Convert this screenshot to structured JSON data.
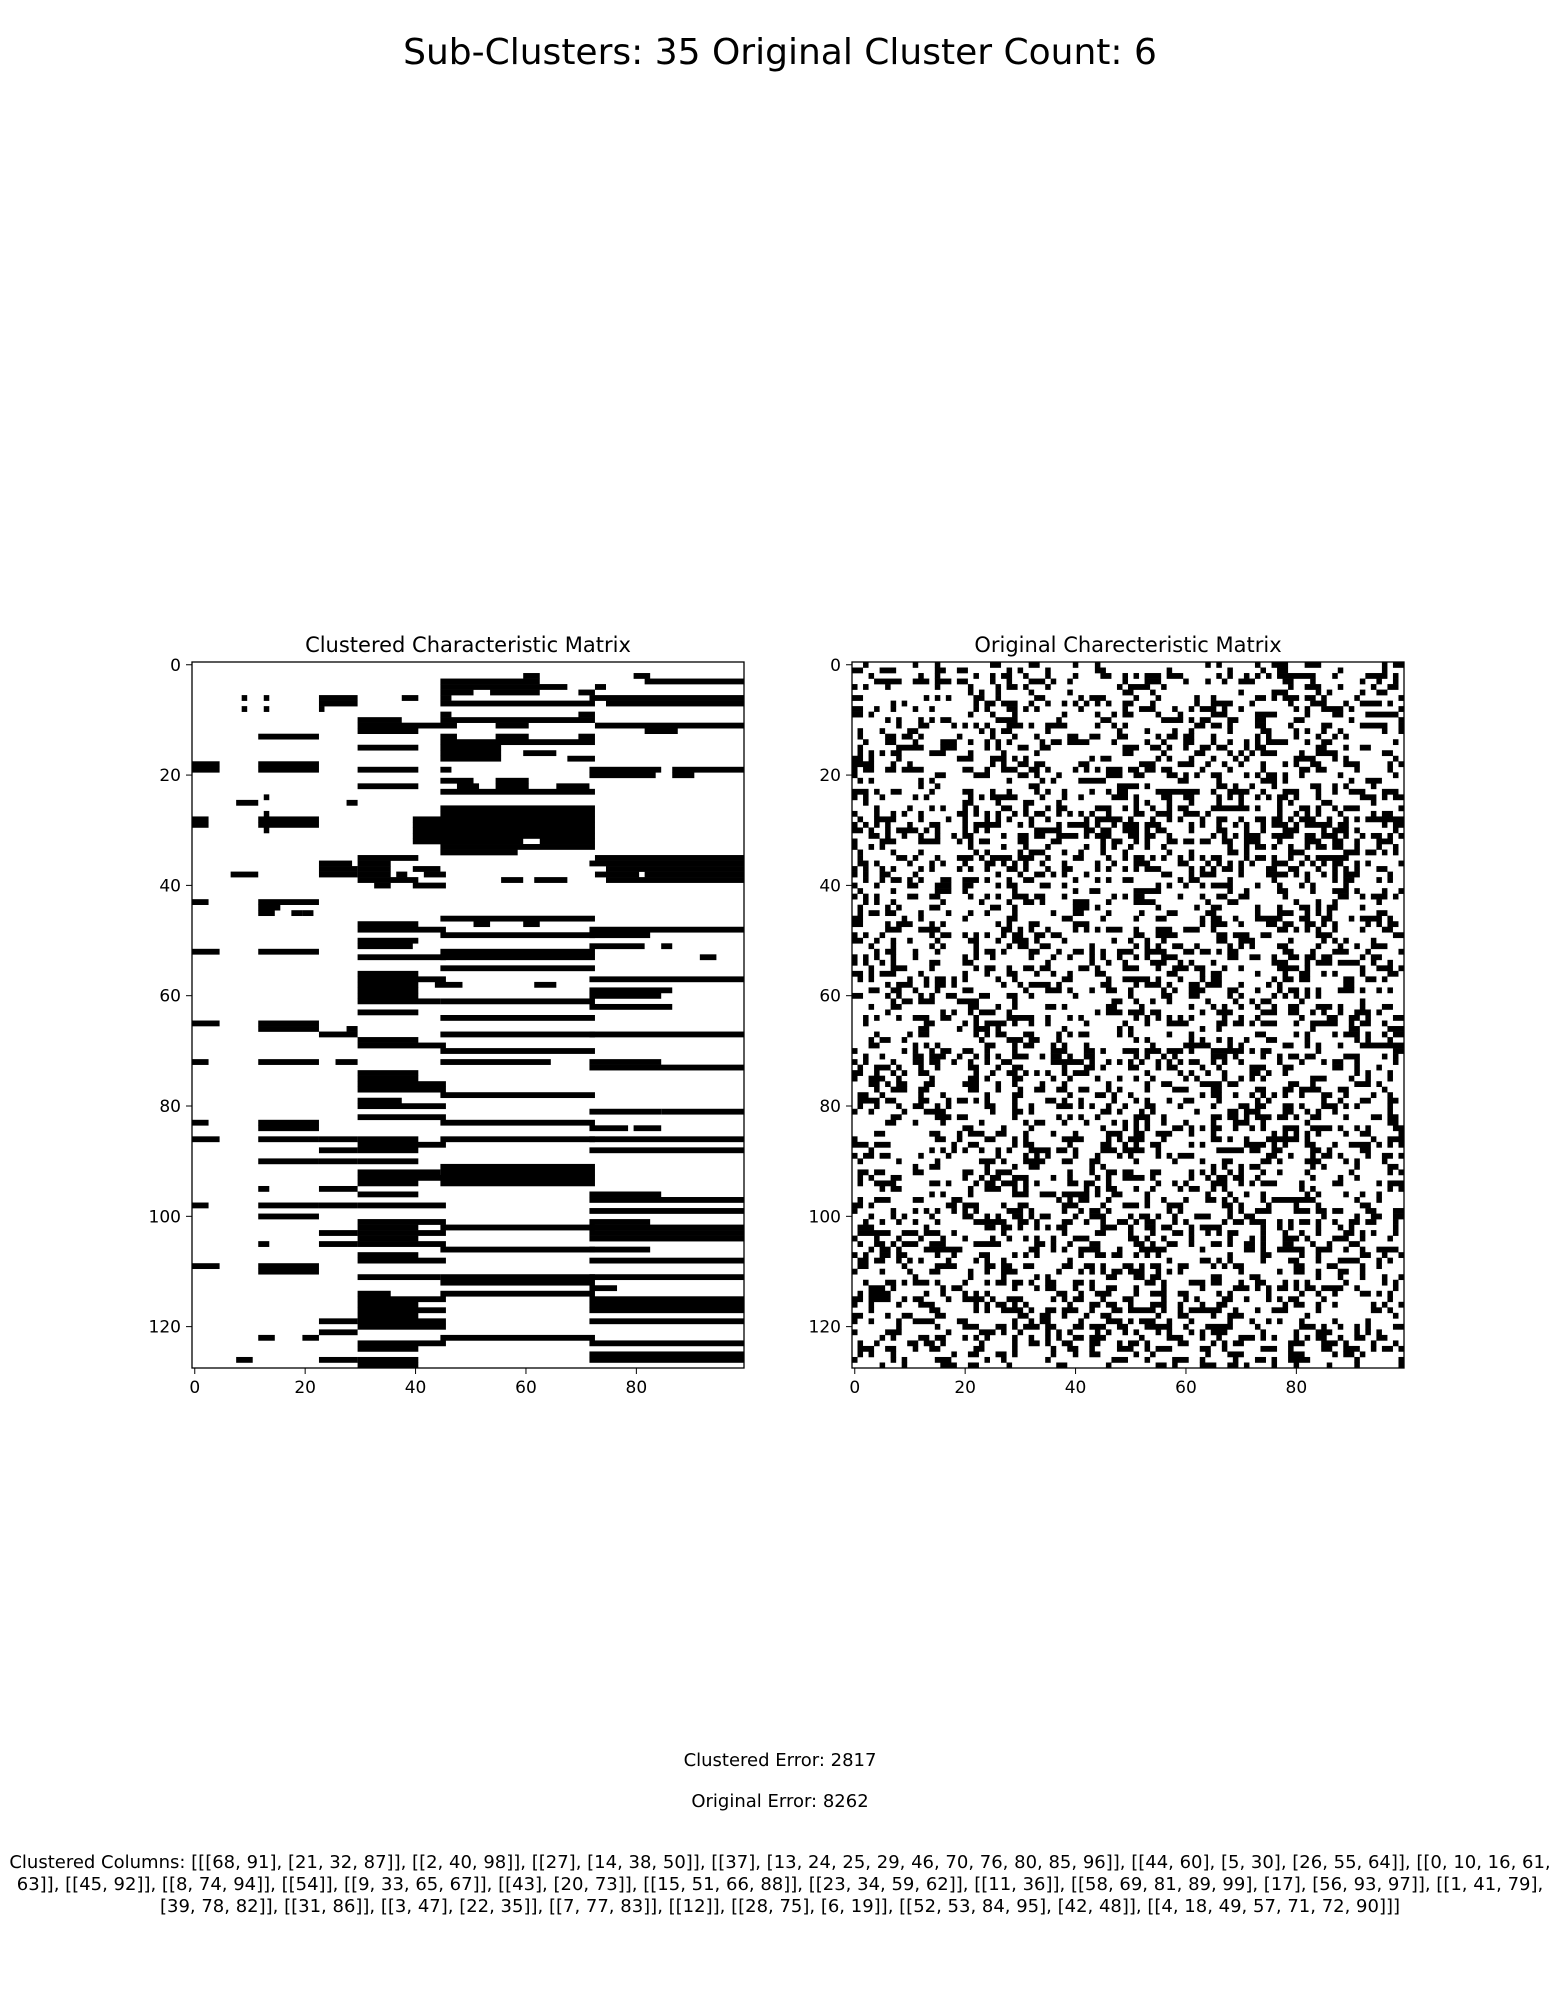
{
  "figure": {
    "suptitle": "Sub-Clusters: 35  Original Cluster Count: 6",
    "clustered_error": "Clustered Error: 2817",
    "original_error": "Original Error: 8262",
    "clustered_columns": "Clustered Columns: [[[68, 91], [21, 32, 87]], [[2, 40, 98]], [[27], [14, 38, 50]], [[37], [13, 24, 25, 29, 46, 70, 76, 80, 85, 96]], [[44, 60], [5, 30], [26, 55, 64]], [[0, 10, 16, 61, 63]], [[45, 92]], [[8, 74, 94]], [[54]], [[9, 33, 65, 67]], [[43], [20, 73]], [[15, 51, 66, 88]], [[23, 34, 59, 62]], [[11, 36]], [[58, 69, 81, 89, 99], [17], [56, 93, 97]], [[1, 41, 79], [39, 78, 82]], [[31, 86]], [[3, 47], [22, 35]], [[7, 77, 83]], [[12]], [[28, 75], [6, 19]], [[52, 53, 84, 95], [42, 48]], [[4, 18, 49, 57, 71, 72, 90]]]"
  },
  "chart_data": [
    {
      "type": "heatmap",
      "title": "Clustered Characteristic Matrix",
      "rows": 128,
      "cols": 100,
      "colormap": {
        "0": "#ffffff",
        "1": "#000000"
      },
      "xticks": [
        0,
        20,
        40,
        60,
        80
      ],
      "yticks": [
        0,
        20,
        40,
        60,
        80,
        100,
        120
      ],
      "xlim": [
        -0.5,
        99.5
      ],
      "ylim": [
        127.5,
        -0.5
      ],
      "filled_runs": [
        [
          2,
          60,
          62
        ],
        [
          2,
          80,
          82
        ],
        [
          3,
          45,
          62
        ],
        [
          3,
          82,
          99
        ],
        [
          4,
          45,
          67
        ],
        [
          4,
          73,
          74
        ],
        [
          5,
          45,
          50
        ],
        [
          5,
          54,
          62
        ],
        [
          5,
          70,
          72
        ],
        [
          6,
          9,
          9
        ],
        [
          6,
          13,
          13
        ],
        [
          6,
          23,
          29
        ],
        [
          6,
          38,
          40
        ],
        [
          6,
          45,
          46
        ],
        [
          6,
          72,
          99
        ],
        [
          7,
          23,
          29
        ],
        [
          7,
          45,
          72
        ],
        [
          7,
          75,
          99
        ],
        [
          8,
          9,
          9
        ],
        [
          8,
          13,
          13
        ],
        [
          8,
          23,
          23
        ],
        [
          9,
          45,
          46
        ],
        [
          9,
          70,
          72
        ],
        [
          10,
          30,
          37
        ],
        [
          10,
          45,
          72
        ],
        [
          11,
          30,
          47
        ],
        [
          11,
          55,
          60
        ],
        [
          11,
          73,
          99
        ],
        [
          12,
          30,
          40
        ],
        [
          12,
          82,
          87
        ],
        [
          13,
          12,
          22
        ],
        [
          13,
          45,
          47
        ],
        [
          13,
          55,
          60
        ],
        [
          13,
          70,
          72
        ],
        [
          14,
          45,
          72
        ],
        [
          15,
          30,
          40
        ],
        [
          15,
          45,
          55
        ],
        [
          16,
          45,
          55
        ],
        [
          16,
          60,
          65
        ],
        [
          17,
          45,
          55
        ],
        [
          17,
          68,
          72
        ],
        [
          18,
          0,
          4
        ],
        [
          18,
          12,
          22
        ],
        [
          19,
          0,
          4
        ],
        [
          19,
          12,
          22
        ],
        [
          19,
          30,
          40
        ],
        [
          19,
          45,
          46
        ],
        [
          19,
          72,
          84
        ],
        [
          19,
          87,
          99
        ],
        [
          20,
          72,
          83
        ],
        [
          20,
          87,
          90
        ],
        [
          21,
          45,
          50
        ],
        [
          21,
          55,
          60
        ],
        [
          22,
          30,
          40
        ],
        [
          22,
          48,
          51
        ],
        [
          22,
          55,
          60
        ],
        [
          22,
          66,
          71
        ],
        [
          23,
          45,
          72
        ],
        [
          24,
          13,
          13
        ],
        [
          25,
          8,
          11
        ],
        [
          25,
          28,
          29
        ],
        [
          26,
          45,
          72
        ],
        [
          27,
          13,
          13
        ],
        [
          27,
          45,
          72
        ],
        [
          28,
          0,
          2
        ],
        [
          28,
          12,
          22
        ],
        [
          28,
          40,
          72
        ],
        [
          29,
          0,
          2
        ],
        [
          29,
          13,
          13
        ],
        [
          29,
          40,
          72
        ],
        [
          29,
          12,
          22
        ],
        [
          30,
          13,
          13
        ],
        [
          30,
          40,
          72
        ],
        [
          31,
          40,
          72
        ],
        [
          32,
          40,
          59
        ],
        [
          32,
          63,
          72
        ],
        [
          33,
          45,
          72
        ],
        [
          34,
          45,
          58
        ],
        [
          35,
          30,
          40
        ],
        [
          35,
          73,
          99
        ],
        [
          36,
          23,
          28
        ],
        [
          36,
          30,
          35
        ],
        [
          36,
          72,
          99
        ],
        [
          37,
          23,
          29
        ],
        [
          37,
          30,
          35
        ],
        [
          37,
          40,
          44
        ],
        [
          37,
          75,
          99
        ],
        [
          38,
          7,
          11
        ],
        [
          38,
          23,
          29
        ],
        [
          38,
          30,
          35
        ],
        [
          38,
          37,
          38
        ],
        [
          38,
          42,
          45
        ],
        [
          38,
          73,
          80
        ],
        [
          38,
          82,
          99
        ],
        [
          39,
          30,
          40
        ],
        [
          39,
          56,
          59
        ],
        [
          39,
          62,
          67
        ],
        [
          39,
          75,
          99
        ],
        [
          40,
          33,
          35
        ],
        [
          40,
          40,
          45
        ],
        [
          43,
          0,
          2
        ],
        [
          43,
          12,
          22
        ],
        [
          44,
          12,
          15
        ],
        [
          45,
          12,
          14
        ],
        [
          45,
          18,
          19
        ],
        [
          45,
          20,
          21
        ],
        [
          46,
          45,
          72
        ],
        [
          47,
          30,
          40
        ],
        [
          47,
          51,
          53
        ],
        [
          47,
          60,
          62
        ],
        [
          48,
          30,
          45
        ],
        [
          48,
          72,
          99
        ],
        [
          49,
          45,
          72
        ],
        [
          49,
          72,
          82
        ],
        [
          50,
          30,
          40
        ],
        [
          51,
          30,
          39
        ],
        [
          51,
          72,
          81
        ],
        [
          51,
          85,
          86
        ],
        [
          52,
          0,
          4
        ],
        [
          52,
          12,
          22
        ],
        [
          52,
          45,
          72
        ],
        [
          53,
          30,
          45
        ],
        [
          53,
          45,
          72
        ],
        [
          53,
          92,
          94
        ],
        [
          55,
          45,
          72
        ],
        [
          56,
          30,
          40
        ],
        [
          57,
          30,
          45
        ],
        [
          57,
          72,
          99
        ],
        [
          58,
          30,
          40
        ],
        [
          58,
          44,
          48
        ],
        [
          58,
          62,
          65
        ],
        [
          59,
          30,
          40
        ],
        [
          59,
          72,
          86
        ],
        [
          60,
          30,
          40
        ],
        [
          60,
          72,
          84
        ],
        [
          61,
          30,
          44
        ],
        [
          61,
          45,
          72
        ],
        [
          62,
          72,
          86
        ],
        [
          63,
          30,
          40
        ],
        [
          64,
          45,
          72
        ],
        [
          65,
          0,
          4
        ],
        [
          65,
          12,
          22
        ],
        [
          66,
          12,
          22
        ],
        [
          66,
          28,
          29
        ],
        [
          67,
          23,
          29
        ],
        [
          67,
          45,
          72
        ],
        [
          67,
          72,
          99
        ],
        [
          68,
          30,
          40
        ],
        [
          69,
          30,
          45
        ],
        [
          70,
          45,
          72
        ],
        [
          72,
          0,
          2
        ],
        [
          72,
          12,
          22
        ],
        [
          72,
          26,
          29
        ],
        [
          72,
          45,
          64
        ],
        [
          72,
          72,
          84
        ],
        [
          73,
          72,
          99
        ],
        [
          74,
          30,
          40
        ],
        [
          75,
          30,
          40
        ],
        [
          76,
          30,
          45
        ],
        [
          77,
          30,
          45
        ],
        [
          78,
          45,
          72
        ],
        [
          79,
          30,
          37
        ],
        [
          80,
          30,
          45
        ],
        [
          81,
          72,
          84
        ],
        [
          81,
          85,
          99
        ],
        [
          82,
          30,
          45
        ],
        [
          83,
          0,
          2
        ],
        [
          83,
          12,
          22
        ],
        [
          83,
          45,
          72
        ],
        [
          84,
          12,
          22
        ],
        [
          84,
          72,
          78
        ],
        [
          84,
          80,
          84
        ],
        [
          86,
          0,
          4
        ],
        [
          86,
          12,
          22
        ],
        [
          86,
          23,
          29
        ],
        [
          86,
          30,
          40
        ],
        [
          86,
          45,
          72
        ],
        [
          86,
          72,
          99
        ],
        [
          87,
          30,
          45
        ],
        [
          88,
          23,
          29
        ],
        [
          88,
          30,
          40
        ],
        [
          88,
          72,
          99
        ],
        [
          90,
          12,
          22
        ],
        [
          90,
          23,
          29
        ],
        [
          90,
          30,
          40
        ],
        [
          91,
          45,
          72
        ],
        [
          92,
          30,
          44
        ],
        [
          92,
          45,
          72
        ],
        [
          93,
          30,
          45
        ],
        [
          93,
          45,
          72
        ],
        [
          94,
          30,
          40
        ],
        [
          94,
          45,
          72
        ],
        [
          95,
          12,
          13
        ],
        [
          95,
          23,
          29
        ],
        [
          96,
          30,
          40
        ],
        [
          96,
          72,
          84
        ],
        [
          97,
          72,
          99
        ],
        [
          98,
          0,
          2
        ],
        [
          98,
          12,
          22
        ],
        [
          98,
          23,
          29
        ],
        [
          98,
          30,
          45
        ],
        [
          99,
          72,
          99
        ],
        [
          100,
          12,
          22
        ],
        [
          101,
          30,
          45
        ],
        [
          101,
          72,
          82
        ],
        [
          102,
          30,
          40
        ],
        [
          102,
          45,
          72
        ],
        [
          102,
          72,
          99
        ],
        [
          103,
          23,
          29
        ],
        [
          103,
          30,
          45
        ],
        [
          103,
          72,
          99
        ],
        [
          104,
          30,
          40
        ],
        [
          104,
          72,
          99
        ],
        [
          105,
          12,
          13
        ],
        [
          105,
          23,
          29
        ],
        [
          105,
          30,
          45
        ],
        [
          106,
          45,
          72
        ],
        [
          106,
          72,
          82
        ],
        [
          107,
          30,
          40
        ],
        [
          108,
          30,
          45
        ],
        [
          108,
          72,
          99
        ],
        [
          109,
          0,
          4
        ],
        [
          109,
          12,
          22
        ],
        [
          110,
          12,
          22
        ],
        [
          111,
          30,
          44
        ],
        [
          111,
          45,
          72
        ],
        [
          111,
          72,
          99
        ],
        [
          112,
          45,
          72
        ],
        [
          113,
          72,
          76
        ],
        [
          114,
          30,
          35
        ],
        [
          114,
          45,
          72
        ],
        [
          115,
          30,
          45
        ],
        [
          115,
          72,
          99
        ],
        [
          116,
          30,
          40
        ],
        [
          116,
          72,
          99
        ],
        [
          117,
          30,
          45
        ],
        [
          117,
          72,
          99
        ],
        [
          118,
          30,
          40
        ],
        [
          119,
          23,
          29
        ],
        [
          119,
          30,
          45
        ],
        [
          119,
          72,
          99
        ],
        [
          120,
          30,
          45
        ],
        [
          121,
          23,
          29
        ],
        [
          122,
          12,
          14
        ],
        [
          122,
          20,
          22
        ],
        [
          122,
          45,
          72
        ],
        [
          123,
          30,
          45
        ],
        [
          123,
          72,
          99
        ],
        [
          124,
          30,
          40
        ],
        [
          125,
          72,
          99
        ],
        [
          126,
          8,
          10
        ],
        [
          126,
          23,
          29
        ],
        [
          126,
          30,
          40
        ],
        [
          126,
          72,
          99
        ],
        [
          127,
          30,
          40
        ]
      ]
    },
    {
      "type": "heatmap",
      "title": "Original Charecteristic Matrix",
      "rows": 128,
      "cols": 100,
      "colormap": {
        "0": "#ffffff",
        "1": "#000000"
      },
      "xticks": [
        0,
        20,
        40,
        60,
        80
      ],
      "yticks": [
        0,
        20,
        40,
        60,
        80,
        100,
        120
      ],
      "xlim": [
        -0.5,
        99.5
      ],
      "ylim": [
        127.5,
        -0.5
      ],
      "density": 0.35,
      "row_density_hint": [
        0.3,
        0.25,
        0.35,
        0.4,
        0.38,
        0.33,
        0.35,
        0.4,
        0.3,
        0.32,
        0.4,
        0.42,
        0.35,
        0.3,
        0.38,
        0.35,
        0.3,
        0.33,
        0.38,
        0.35,
        0.4,
        0.38,
        0.3,
        0.35,
        0.33,
        0.3,
        0.45,
        0.6,
        0.62,
        0.6,
        0.58,
        0.55,
        0.45,
        0.4,
        0.38,
        0.5,
        0.55,
        0.58,
        0.55,
        0.48,
        0.35,
        0.3,
        0.32,
        0.35,
        0.38,
        0.3,
        0.28,
        0.32,
        0.35,
        0.4,
        0.38,
        0.35,
        0.45,
        0.48,
        0.42,
        0.38,
        0.4,
        0.42,
        0.4,
        0.38,
        0.35,
        0.33,
        0.35,
        0.38,
        0.3,
        0.35,
        0.32,
        0.3,
        0.35,
        0.38,
        0.4,
        0.42,
        0.45,
        0.4,
        0.38,
        0.35,
        0.32,
        0.35,
        0.38,
        0.35,
        0.38,
        0.4,
        0.38,
        0.35,
        0.32,
        0.35,
        0.45,
        0.48,
        0.45,
        0.4,
        0.38,
        0.35,
        0.42,
        0.45,
        0.4,
        0.38,
        0.35,
        0.32,
        0.35,
        0.38,
        0.4,
        0.42,
        0.45,
        0.48,
        0.45,
        0.4,
        0.38,
        0.35,
        0.38,
        0.4,
        0.35,
        0.32,
        0.38,
        0.4,
        0.42,
        0.45,
        0.42,
        0.4,
        0.38,
        0.35,
        0.38,
        0.4,
        0.42,
        0.4,
        0.35,
        0.3,
        0.28,
        0.25
      ]
    }
  ]
}
